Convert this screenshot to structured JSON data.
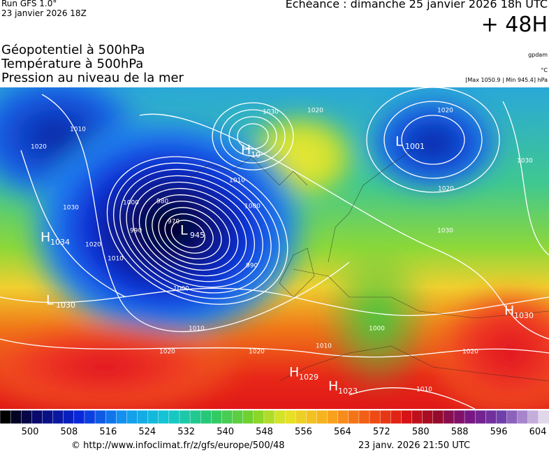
{
  "header": {
    "run": "Run GFS 1.0°",
    "run_date": "23 janvier 2026 18Z",
    "valid": "Echéance : dimanche 25 janvier 2026 18h UTC",
    "lead": "+ 48H"
  },
  "layers": [
    "Géopotentiel à 500hPa",
    "Température à 500hPa",
    "Pression au niveau de la mer"
  ],
  "units": {
    "geopotential": "gpdam",
    "temperature": "°C",
    "pressure": "[Max 1050.9 | Min 945.4] hPa"
  },
  "centers": [
    {
      "kind": "L",
      "value": "945"
    },
    {
      "kind": "L",
      "value": "1001"
    },
    {
      "kind": "H",
      "value": "1034"
    },
    {
      "kind": "H",
      "value": "10"
    },
    {
      "kind": "L",
      "value": "1030"
    },
    {
      "kind": "H",
      "value": "1030"
    },
    {
      "kind": "H",
      "value": "1029"
    },
    {
      "kind": "H",
      "value": "1023"
    }
  ],
  "isobar_labels": [
    "1020",
    "1020",
    "1010",
    "1000",
    "990",
    "980",
    "970",
    "1000",
    "1010",
    "1020",
    "1020",
    "1000",
    "1010",
    "1020",
    "1020",
    "1030",
    "1030",
    "1030",
    "1020",
    "1010",
    "1020",
    "990",
    "1000",
    "1010",
    "1030",
    "1010"
  ],
  "colorbar": {
    "labels": [
      500,
      508,
      516,
      524,
      532,
      540,
      548,
      556,
      564,
      572,
      580,
      588,
      596,
      604
    ]
  },
  "footer": {
    "source": "© http://www.infoclimat.fr/z/gfs/europe/500/48",
    "generated": "23 janv. 2026 21:50 UTC"
  }
}
